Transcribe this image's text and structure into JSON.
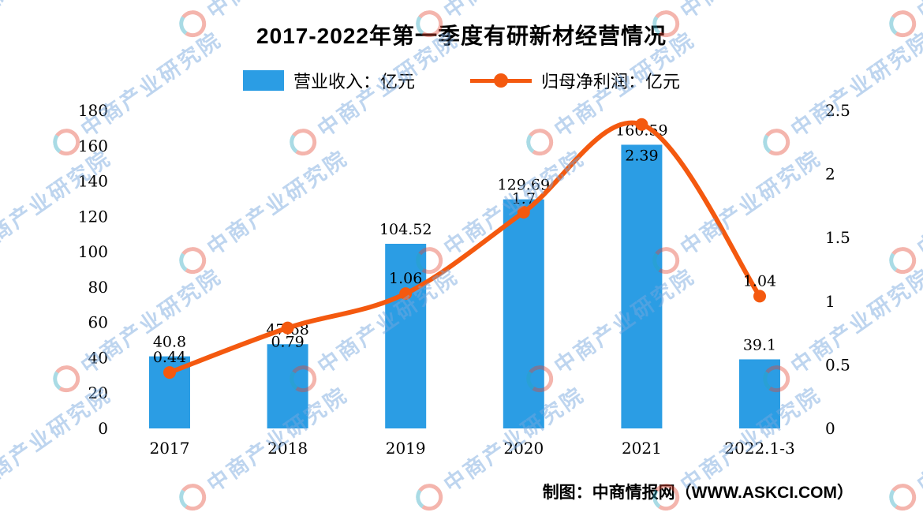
{
  "title": "2017-2022年第一季度有研新材经营情况",
  "legend": [
    {
      "label": "营业收入：亿元",
      "color": "#2b9de4",
      "type": "bar"
    },
    {
      "label": "归母净利润：亿元",
      "color": "#f4590f",
      "type": "line"
    }
  ],
  "footer": {
    "credit": "制图：中商情报网（WWW.ASKCI.COM）"
  },
  "watermark": {
    "text": "中商产业研究院"
  },
  "chart_data": {
    "type": "bar+line",
    "title": "2017-2022年第一季度有研新材经营情况",
    "categories": [
      "2017",
      "2018",
      "2019",
      "2020",
      "2021",
      "2022.1-3"
    ],
    "series": [
      {
        "name": "营业收入：亿元",
        "type": "bar",
        "axis": "left",
        "color": "#2b9de4",
        "values": [
          40.8,
          47.68,
          104.52,
          129.69,
          160.59,
          39.1
        ]
      },
      {
        "name": "归母净利润：亿元",
        "type": "line",
        "axis": "right",
        "color": "#f4590f",
        "values": [
          0.44,
          0.79,
          1.06,
          1.7,
          2.39,
          1.04
        ]
      }
    ],
    "left_axis": {
      "min": 0,
      "max": 180,
      "step": 20,
      "ticks": [
        "0",
        "20",
        "40",
        "60",
        "80",
        "100",
        "120",
        "140",
        "160",
        "180"
      ]
    },
    "right_axis": {
      "min": 0,
      "max": 2.5,
      "step": 0.5,
      "ticks": [
        "0",
        "0.5",
        "1",
        "1.5",
        "2",
        "2.5"
      ]
    },
    "grid": false,
    "legend_position": "top",
    "xlabel": "",
    "ylabel_left": "亿元",
    "ylabel_right": "亿元"
  }
}
